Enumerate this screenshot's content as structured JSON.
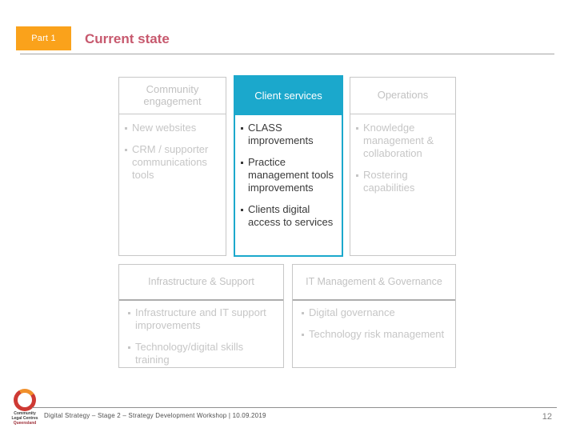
{
  "header": {
    "part_label": "Part 1",
    "title": "Current state"
  },
  "matrix": {
    "top_boxes": [
      {
        "title": "Community engagement",
        "highlighted": false,
        "bullets": [
          "New websites",
          "CRM / supporter communications tools"
        ]
      },
      {
        "title": "Client services",
        "highlighted": true,
        "bullets": [
          "CLASS improvements",
          "Practice management tools improvements",
          "Clients digital access to services"
        ]
      },
      {
        "title": "Operations",
        "highlighted": false,
        "bullets": [
          "Knowledge management & collaboration",
          "Rostering capabilities"
        ]
      }
    ],
    "bottom_boxes": [
      {
        "title": "Infrastructure & Support",
        "bullets": [
          "Infrastructure and IT support improvements",
          "Technology/digital skills training"
        ]
      },
      {
        "title": "IT Management & Governance",
        "bullets": [
          "Digital governance",
          "Technology risk management"
        ]
      }
    ]
  },
  "footer": {
    "logo_lines": [
      "Community",
      "Legal Centres",
      "Queensland"
    ],
    "text": "Digital Strategy – Stage 2 – Strategy Development Workshop | 10.09.2019",
    "page_number": "12"
  },
  "colors": {
    "accent_cyan": "#1BA8CC",
    "accent_orange": "#FAA21B",
    "title_rose": "#C7596E",
    "muted_gray_text": "#C2C2C2",
    "dark_text": "#3A3A3A",
    "logo_red": "#CE3A34",
    "logo_orange": "#F0902C"
  }
}
